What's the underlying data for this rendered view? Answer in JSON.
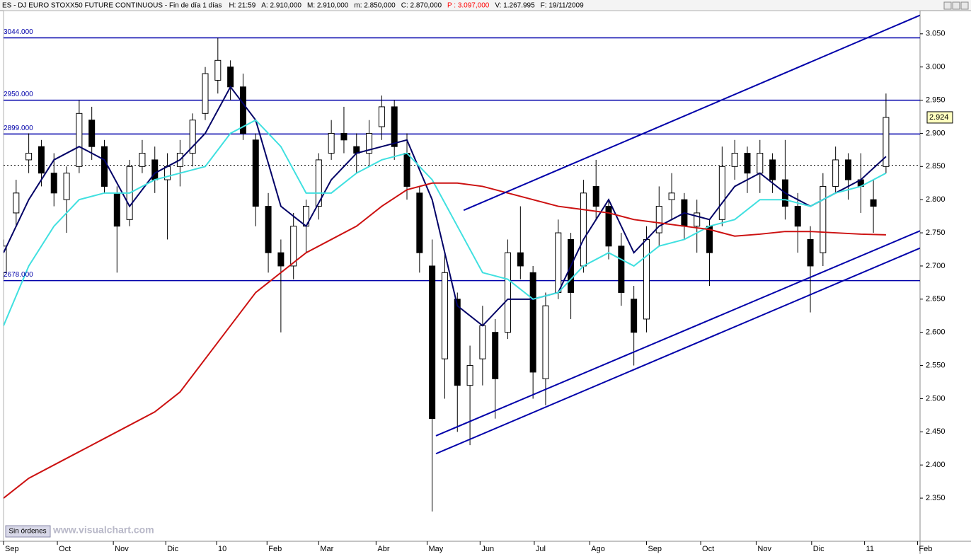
{
  "header": {
    "symbol": "ES - DJ EURO STOXX50 FUTURE CONTINUOUS - Fin de día 1 días",
    "fields": [
      {
        "text": "H: 21:59"
      },
      {
        "text": "A: 2.910,000"
      },
      {
        "text": "M: 2.910,000"
      },
      {
        "text": "m: 2.850,000"
      },
      {
        "text": "C: 2.870,000"
      },
      {
        "text": "P : 3.097,000",
        "color": "#ff0000"
      },
      {
        "text": "V: 1.267.995"
      },
      {
        "text": "F: 19/11/2009"
      }
    ]
  },
  "footer": {
    "button": "Sin órdenes",
    "watermark": "www.visualchart.com"
  },
  "chart_data": {
    "type": "candlestick",
    "x": [
      0,
      1,
      2,
      3,
      4,
      5,
      6,
      7,
      8,
      9,
      10,
      11,
      12,
      13,
      14,
      15,
      16,
      17,
      18,
      19,
      20,
      21,
      22,
      23,
      24,
      25,
      26,
      27,
      28,
      29,
      30,
      31,
      32,
      33,
      34,
      35,
      36,
      37,
      38,
      39,
      40,
      41,
      42,
      43,
      44,
      45,
      46,
      47,
      48,
      49,
      50,
      51,
      52,
      53,
      54,
      55,
      56,
      57,
      58,
      59,
      60,
      61,
      62,
      63,
      64,
      65,
      66,
      67,
      68,
      69,
      70
    ],
    "ohlc": [
      [
        2690,
        2740,
        2680,
        2730
      ],
      [
        2780,
        2830,
        2760,
        2810
      ],
      [
        2860,
        2900,
        2840,
        2870
      ],
      [
        2880,
        2890,
        2820,
        2840
      ],
      [
        2840,
        2870,
        2790,
        2810
      ],
      [
        2800,
        2850,
        2750,
        2840
      ],
      [
        2850,
        2950,
        2840,
        2930
      ],
      [
        2920,
        2940,
        2860,
        2880
      ],
      [
        2880,
        2890,
        2810,
        2820
      ],
      [
        2810,
        2820,
        2690,
        2760
      ],
      [
        2770,
        2860,
        2760,
        2850
      ],
      [
        2850,
        2890,
        2840,
        2870
      ],
      [
        2860,
        2880,
        2810,
        2830
      ],
      [
        2830,
        2870,
        2740,
        2850
      ],
      [
        2850,
        2890,
        2820,
        2870
      ],
      [
        2870,
        2930,
        2850,
        2920
      ],
      [
        2930,
        3000,
        2920,
        2990
      ],
      [
        2980,
        3044,
        2960,
        3010
      ],
      [
        3000,
        3010,
        2950,
        2970
      ],
      [
        2970,
        2990,
        2890,
        2900
      ],
      [
        2890,
        2900,
        2760,
        2790
      ],
      [
        2790,
        2810,
        2690,
        2720
      ],
      [
        2720,
        2740,
        2600,
        2700
      ],
      [
        2700,
        2780,
        2680,
        2760
      ],
      [
        2760,
        2800,
        2720,
        2790
      ],
      [
        2790,
        2870,
        2770,
        2860
      ],
      [
        2870,
        2920,
        2860,
        2900
      ],
      [
        2900,
        2940,
        2870,
        2890
      ],
      [
        2880,
        2900,
        2840,
        2870
      ],
      [
        2870,
        2920,
        2850,
        2900
      ],
      [
        2910,
        2957,
        2890,
        2940
      ],
      [
        2940,
        2950,
        2860,
        2880
      ],
      [
        2870,
        2900,
        2800,
        2820
      ],
      [
        2810,
        2820,
        2690,
        2720
      ],
      [
        2700,
        2740,
        2330,
        2470
      ],
      [
        2560,
        2720,
        2500,
        2690
      ],
      [
        2650,
        2660,
        2450,
        2520
      ],
      [
        2520,
        2580,
        2430,
        2550
      ],
      [
        2560,
        2640,
        2520,
        2610
      ],
      [
        2600,
        2620,
        2470,
        2530
      ],
      [
        2600,
        2740,
        2590,
        2720
      ],
      [
        2720,
        2790,
        2680,
        2700
      ],
      [
        2690,
        2700,
        2500,
        2540
      ],
      [
        2530,
        2660,
        2490,
        2640
      ],
      [
        2660,
        2770,
        2650,
        2750
      ],
      [
        2740,
        2750,
        2620,
        2660
      ],
      [
        2700,
        2830,
        2690,
        2810
      ],
      [
        2820,
        2860,
        2770,
        2790
      ],
      [
        2790,
        2800,
        2710,
        2730
      ],
      [
        2730,
        2750,
        2640,
        2660
      ],
      [
        2650,
        2670,
        2550,
        2600
      ],
      [
        2620,
        2760,
        2600,
        2740
      ],
      [
        2750,
        2820,
        2730,
        2790
      ],
      [
        2800,
        2840,
        2770,
        2810
      ],
      [
        2800,
        2810,
        2740,
        2760
      ],
      [
        2760,
        2800,
        2720,
        2780
      ],
      [
        2760,
        2770,
        2670,
        2720
      ],
      [
        2770,
        2880,
        2760,
        2850
      ],
      [
        2850,
        2890,
        2830,
        2870
      ],
      [
        2870,
        2880,
        2810,
        2840
      ],
      [
        2840,
        2890,
        2810,
        2870
      ],
      [
        2860,
        2870,
        2810,
        2830
      ],
      [
        2830,
        2890,
        2770,
        2790
      ],
      [
        2790,
        2810,
        2720,
        2760
      ],
      [
        2740,
        2760,
        2630,
        2700
      ],
      [
        2720,
        2840,
        2700,
        2820
      ],
      [
        2820,
        2880,
        2810,
        2860
      ],
      [
        2860,
        2870,
        2800,
        2830
      ],
      [
        2830,
        2870,
        2780,
        2820
      ],
      [
        2800,
        2830,
        2750,
        2790
      ],
      [
        2850,
        2960,
        2840,
        2924
      ]
    ],
    "up_color": "#ffffff",
    "down_color": "#000000",
    "lines": [
      {
        "color": "#000066",
        "x": [
          0,
          2,
          4,
          6,
          8,
          10,
          12,
          14,
          16,
          18,
          20,
          22,
          24,
          26,
          28,
          30,
          32,
          34,
          36,
          38,
          40,
          42,
          44,
          46,
          48,
          50,
          52,
          54,
          56,
          58,
          60,
          62,
          64,
          66,
          68,
          70
        ],
        "values": [
          2720,
          2800,
          2860,
          2880,
          2860,
          2790,
          2840,
          2860,
          2900,
          2970,
          2920,
          2790,
          2760,
          2830,
          2870,
          2880,
          2890,
          2800,
          2640,
          2610,
          2650,
          2650,
          2660,
          2740,
          2800,
          2720,
          2760,
          2780,
          2770,
          2820,
          2840,
          2810,
          2790,
          2810,
          2830,
          2865
        ]
      },
      {
        "color": "#40e0e0",
        "x": [
          0,
          2,
          4,
          6,
          8,
          10,
          12,
          14,
          16,
          18,
          20,
          22,
          24,
          26,
          28,
          30,
          32,
          34,
          36,
          38,
          40,
          42,
          44,
          46,
          48,
          50,
          52,
          54,
          56,
          58,
          60,
          62,
          64,
          66,
          68,
          70
        ],
        "values": [
          2610,
          2700,
          2760,
          2800,
          2810,
          2810,
          2830,
          2840,
          2850,
          2900,
          2920,
          2880,
          2810,
          2810,
          2840,
          2860,
          2870,
          2830,
          2760,
          2690,
          2680,
          2650,
          2660,
          2700,
          2720,
          2700,
          2730,
          2740,
          2760,
          2770,
          2800,
          2800,
          2790,
          2810,
          2820,
          2840
        ]
      },
      {
        "color": "#cc1111",
        "x": [
          0,
          2,
          4,
          6,
          8,
          10,
          12,
          14,
          16,
          18,
          20,
          22,
          24,
          26,
          28,
          30,
          32,
          34,
          36,
          38,
          40,
          42,
          44,
          46,
          48,
          50,
          52,
          54,
          56,
          58,
          60,
          62,
          64,
          66,
          68,
          70
        ],
        "values": [
          2350,
          2380,
          2400,
          2420,
          2440,
          2460,
          2480,
          2510,
          2560,
          2610,
          2660,
          2690,
          2720,
          2740,
          2760,
          2790,
          2815,
          2825,
          2825,
          2820,
          2810,
          2800,
          2790,
          2785,
          2780,
          2770,
          2765,
          2760,
          2755,
          2745,
          2748,
          2752,
          2752,
          2750,
          2748,
          2747
        ]
      }
    ],
    "trend_lines": [
      {
        "color": "#0000aa",
        "x": [
          36.5,
          72.7
        ],
        "values": [
          2784,
          3078
        ]
      },
      {
        "color": "#0000aa",
        "x": [
          34.3,
          72.7
        ],
        "values": [
          2444,
          2753
        ]
      },
      {
        "color": "#0000aa",
        "x": [
          34.3,
          72.7
        ],
        "values": [
          2417,
          2727
        ]
      }
    ],
    "levels": [
      {
        "value": 3044,
        "label": "3044.000"
      },
      {
        "value": 2950,
        "label": "2950.000"
      },
      {
        "value": 2899,
        "label": "2899.000"
      },
      {
        "value": 2678,
        "label": "2678.000"
      }
    ],
    "level_color": "#0000aa",
    "dotted_levels": [
      2852
    ],
    "last_price": {
      "value": 2924,
      "label": "2.924"
    },
    "xlim": [
      0,
      72.7
    ],
    "ylim": [
      2285,
      3085
    ],
    "xticks": [
      {
        "value": 0,
        "label": "Sep"
      },
      {
        "value": 4.27,
        "label": "Oct"
      },
      {
        "value": 8.71,
        "label": "Nov"
      },
      {
        "value": 12.87,
        "label": "Dic"
      },
      {
        "value": 16.9,
        "label": "10"
      },
      {
        "value": 20.9,
        "label": "Feb"
      },
      {
        "value": 25.0,
        "label": "Mar"
      },
      {
        "value": 29.55,
        "label": "Abr"
      },
      {
        "value": 33.6,
        "label": "May"
      },
      {
        "value": 37.8,
        "label": "Jun"
      },
      {
        "value": 42.1,
        "label": "Jul"
      },
      {
        "value": 46.5,
        "label": "Ago"
      },
      {
        "value": 51.0,
        "label": "Sep"
      },
      {
        "value": 55.3,
        "label": "Oct"
      },
      {
        "value": 59.7,
        "label": "Nov"
      },
      {
        "value": 64.1,
        "label": "Dic"
      },
      {
        "value": 68.3,
        "label": "11"
      },
      {
        "value": 72.5,
        "label": "Feb"
      }
    ],
    "yticks": [
      {
        "value": 3050,
        "label": "3.050"
      },
      {
        "value": 3000,
        "label": "3.000"
      },
      {
        "value": 2950,
        "label": "2.950"
      },
      {
        "value": 2900,
        "label": "2.900"
      },
      {
        "value": 2850,
        "label": "2.850"
      },
      {
        "value": 2800,
        "label": "2.800"
      },
      {
        "value": 2750,
        "label": "2.750"
      },
      {
        "value": 2700,
        "label": "2.700"
      },
      {
        "value": 2650,
        "label": "2.650"
      },
      {
        "value": 2600,
        "label": "2.600"
      },
      {
        "value": 2550,
        "label": "2.550"
      },
      {
        "value": 2500,
        "label": "2.500"
      },
      {
        "value": 2450,
        "label": "2.450"
      },
      {
        "value": 2400,
        "label": "2.400"
      },
      {
        "value": 2350,
        "label": "2.350"
      }
    ]
  }
}
